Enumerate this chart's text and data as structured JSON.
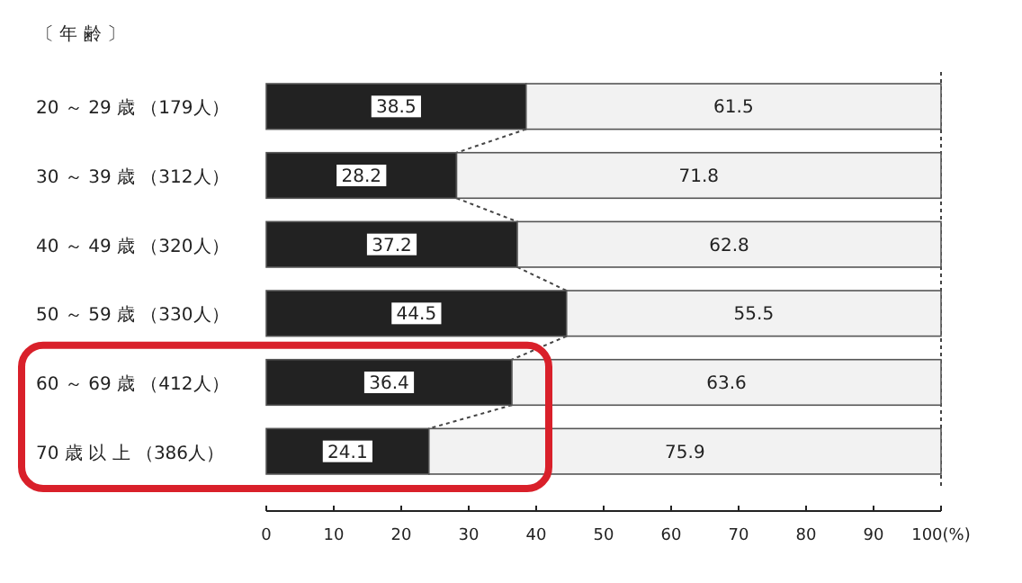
{
  "chart_data": {
    "type": "bar",
    "orientation": "horizontal",
    "stacked": true,
    "ylabel": "〔 年 齢 〕",
    "categories": [
      "20 ～ 29 歳 （179人）",
      "30 ～ 39 歳 （312人）",
      "40 ～ 49 歳 （320人）",
      "50 ～ 59 歳 （330人）",
      "60 ～ 69 歳 （412人）",
      "70 歳 以 上 （386人）"
    ],
    "series": [
      {
        "color": "#222222",
        "values": [
          38.5,
          28.2,
          37.2,
          44.5,
          36.4,
          24.1
        ]
      },
      {
        "color": "#f2f2f2",
        "values": [
          61.5,
          71.8,
          62.8,
          55.5,
          63.6,
          75.9
        ]
      }
    ],
    "xlim": [
      0,
      100
    ],
    "xticks": [
      0,
      10,
      20,
      30,
      40,
      50,
      60,
      70,
      80,
      90,
      {
        "value": 100,
        "label": "100(%)"
      }
    ],
    "data_labels": true
  }
}
